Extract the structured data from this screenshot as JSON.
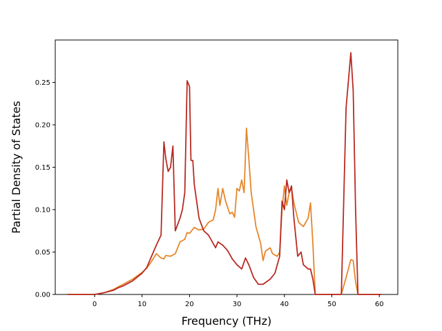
{
  "chart_data": {
    "type": "line",
    "title": "",
    "xlabel": "Frequency (THz)",
    "ylabel": "Partial Density of States",
    "xlim": [
      -8.3,
      63.9
    ],
    "ylim": [
      0.0,
      0.3
    ],
    "xticks": [
      0,
      10,
      20,
      30,
      40,
      50,
      60
    ],
    "yticks": [
      0.0,
      0.05,
      0.1,
      0.15,
      0.2,
      0.25
    ],
    "ytick_labels": [
      "0.00",
      "0.05",
      "0.10",
      "0.15",
      "0.20",
      "0.25"
    ],
    "grid": false,
    "legend": "none",
    "series": [
      {
        "color": "#e6862a",
        "points": [
          [
            -5.7,
            0.0
          ],
          [
            0,
            0.0
          ],
          [
            2,
            0.002
          ],
          [
            4,
            0.006
          ],
          [
            5,
            0.009
          ],
          [
            6,
            0.012
          ],
          [
            8,
            0.018
          ],
          [
            10,
            0.026
          ],
          [
            11,
            0.031
          ],
          [
            12,
            0.039
          ],
          [
            13,
            0.048
          ],
          [
            14,
            0.043
          ],
          [
            14.6,
            0.042
          ],
          [
            15,
            0.046
          ],
          [
            16,
            0.045
          ],
          [
            17,
            0.048
          ],
          [
            18,
            0.062
          ],
          [
            19,
            0.065
          ],
          [
            19.5,
            0.073
          ],
          [
            20,
            0.072
          ],
          [
            21,
            0.079
          ],
          [
            22,
            0.076
          ],
          [
            23,
            0.077
          ],
          [
            24,
            0.085
          ],
          [
            25,
            0.088
          ],
          [
            25.5,
            0.1
          ],
          [
            26,
            0.125
          ],
          [
            26.4,
            0.105
          ],
          [
            27,
            0.125
          ],
          [
            27.6,
            0.11
          ],
          [
            28.5,
            0.095
          ],
          [
            29,
            0.097
          ],
          [
            29.5,
            0.091
          ],
          [
            30,
            0.125
          ],
          [
            30.5,
            0.122
          ],
          [
            31,
            0.135
          ],
          [
            31.5,
            0.12
          ],
          [
            32,
            0.196
          ],
          [
            32.5,
            0.16
          ],
          [
            33,
            0.12
          ],
          [
            34,
            0.08
          ],
          [
            35,
            0.06
          ],
          [
            35.5,
            0.04
          ],
          [
            36,
            0.051
          ],
          [
            37,
            0.055
          ],
          [
            37.5,
            0.048
          ],
          [
            38.5,
            0.045
          ],
          [
            39,
            0.05
          ],
          [
            39.5,
            0.1
          ],
          [
            40,
            0.128
          ],
          [
            40.5,
            0.105
          ],
          [
            41,
            0.12
          ],
          [
            41.5,
            0.125
          ],
          [
            42,
            0.108
          ],
          [
            43,
            0.085
          ],
          [
            44,
            0.08
          ],
          [
            45,
            0.09
          ],
          [
            45.5,
            0.108
          ],
          [
            46,
            0.06
          ],
          [
            46.5,
            0.0
          ],
          [
            52,
            0.0
          ],
          [
            53,
            0.02
          ],
          [
            54,
            0.041
          ],
          [
            54.5,
            0.04
          ],
          [
            55,
            0.015
          ],
          [
            55.5,
            0.0
          ],
          [
            60.5,
            0.0
          ]
        ]
      },
      {
        "color": "#b82a22",
        "points": [
          [
            -5.7,
            0.0
          ],
          [
            0,
            0.0
          ],
          [
            2,
            0.002
          ],
          [
            4,
            0.005
          ],
          [
            5,
            0.008
          ],
          [
            6,
            0.01
          ],
          [
            8,
            0.016
          ],
          [
            10,
            0.025
          ],
          [
            11,
            0.032
          ],
          [
            12,
            0.045
          ],
          [
            13,
            0.058
          ],
          [
            14,
            0.07
          ],
          [
            14.6,
            0.18
          ],
          [
            15,
            0.16
          ],
          [
            15.5,
            0.145
          ],
          [
            16,
            0.15
          ],
          [
            16.5,
            0.175
          ],
          [
            17,
            0.075
          ],
          [
            18,
            0.09
          ],
          [
            18.5,
            0.1
          ],
          [
            19,
            0.12
          ],
          [
            19.5,
            0.252
          ],
          [
            20,
            0.245
          ],
          [
            20.3,
            0.158
          ],
          [
            20.7,
            0.158
          ],
          [
            21,
            0.13
          ],
          [
            22,
            0.09
          ],
          [
            23,
            0.075
          ],
          [
            24,
            0.07
          ],
          [
            25,
            0.06
          ],
          [
            25.5,
            0.055
          ],
          [
            26,
            0.062
          ],
          [
            27,
            0.058
          ],
          [
            28,
            0.052
          ],
          [
            29,
            0.042
          ],
          [
            30,
            0.035
          ],
          [
            31,
            0.03
          ],
          [
            31.8,
            0.043
          ],
          [
            32.5,
            0.035
          ],
          [
            33.5,
            0.02
          ],
          [
            34.5,
            0.012
          ],
          [
            35.5,
            0.012
          ],
          [
            37,
            0.018
          ],
          [
            38,
            0.025
          ],
          [
            39,
            0.045
          ],
          [
            39.5,
            0.11
          ],
          [
            40,
            0.1
          ],
          [
            40.5,
            0.135
          ],
          [
            41,
            0.12
          ],
          [
            41.5,
            0.128
          ],
          [
            42,
            0.09
          ],
          [
            42.8,
            0.045
          ],
          [
            43.5,
            0.05
          ],
          [
            44,
            0.035
          ],
          [
            45,
            0.03
          ],
          [
            45.5,
            0.03
          ],
          [
            46,
            0.018
          ],
          [
            46.5,
            0.0
          ],
          [
            52,
            0.0
          ],
          [
            53,
            0.22
          ],
          [
            54,
            0.285
          ],
          [
            54.5,
            0.24
          ],
          [
            55,
            0.1
          ],
          [
            55.5,
            0.0
          ],
          [
            60.5,
            0.0
          ]
        ]
      }
    ]
  }
}
